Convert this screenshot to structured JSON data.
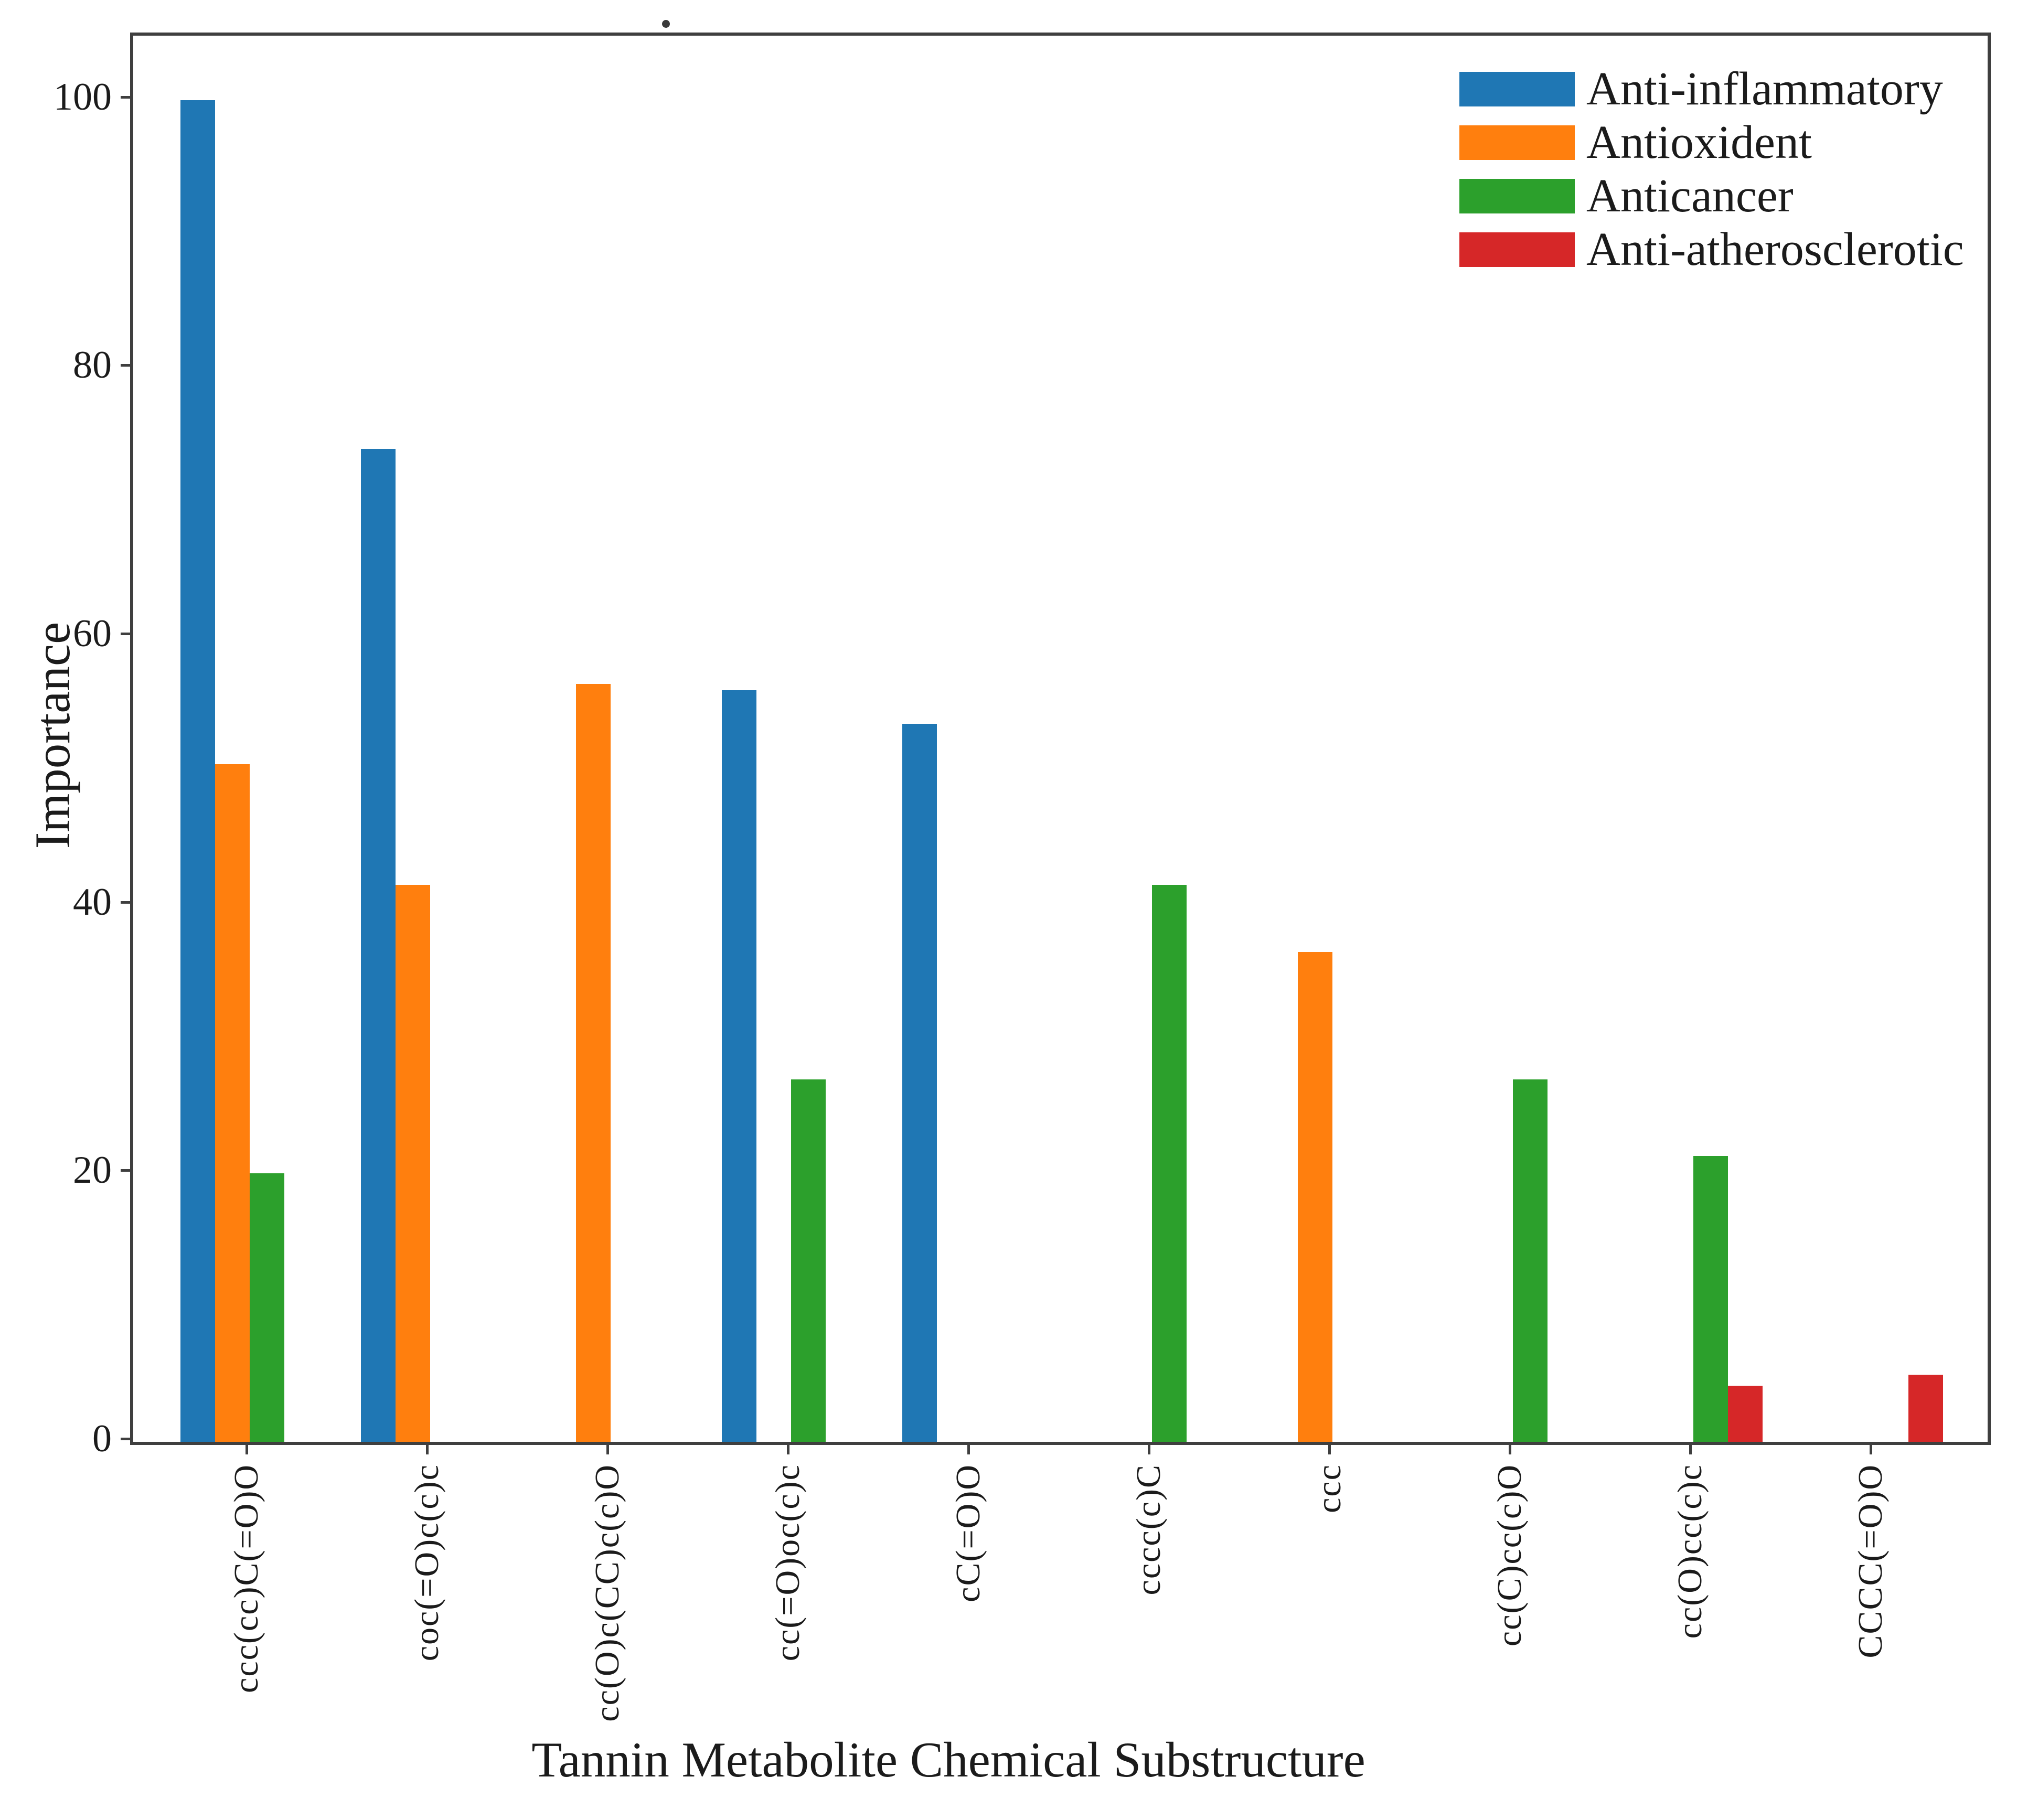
{
  "chart_data": {
    "type": "bar",
    "title": "",
    "xlabel": "Tannin Metabolite Chemical Substructure",
    "ylabel": "Importance",
    "categories": [
      "ccc(cc)C(=O)O",
      "coc(=O)c(c)c",
      "cc(O)c(CC)c(c)O",
      "cc(=O)oc(c)c",
      "cC(=O)O",
      "cccc(c)C",
      "ccc",
      "cc(C)cc(c)O",
      "cc(O)cc(c)c",
      "CCCC(=O)O"
    ],
    "series": [
      {
        "name": "Anti-inflammatory",
        "color": "#1f77b4",
        "values": [
          100,
          74,
          0,
          56,
          53.5,
          0,
          0,
          0,
          0,
          0
        ]
      },
      {
        "name": "Antioxident",
        "color": "#ff7f0e",
        "values": [
          50.5,
          41.5,
          56.5,
          0,
          0,
          0,
          36.5,
          0,
          0,
          0
        ]
      },
      {
        "name": "Anticancer",
        "color": "#2ca02c",
        "values": [
          20,
          0,
          0,
          27,
          0,
          41.5,
          0,
          27,
          21.3,
          0
        ]
      },
      {
        "name": "Anti-atherosclerotic",
        "color": "#d62728",
        "values": [
          0,
          0,
          0,
          0,
          0,
          0,
          0,
          0,
          4.2,
          5
        ]
      }
    ],
    "yticks": [
      0,
      20,
      40,
      60,
      80,
      100
    ],
    "ylim": [
      0,
      104.8
    ],
    "grid": false,
    "legend_position": "upper right"
  }
}
